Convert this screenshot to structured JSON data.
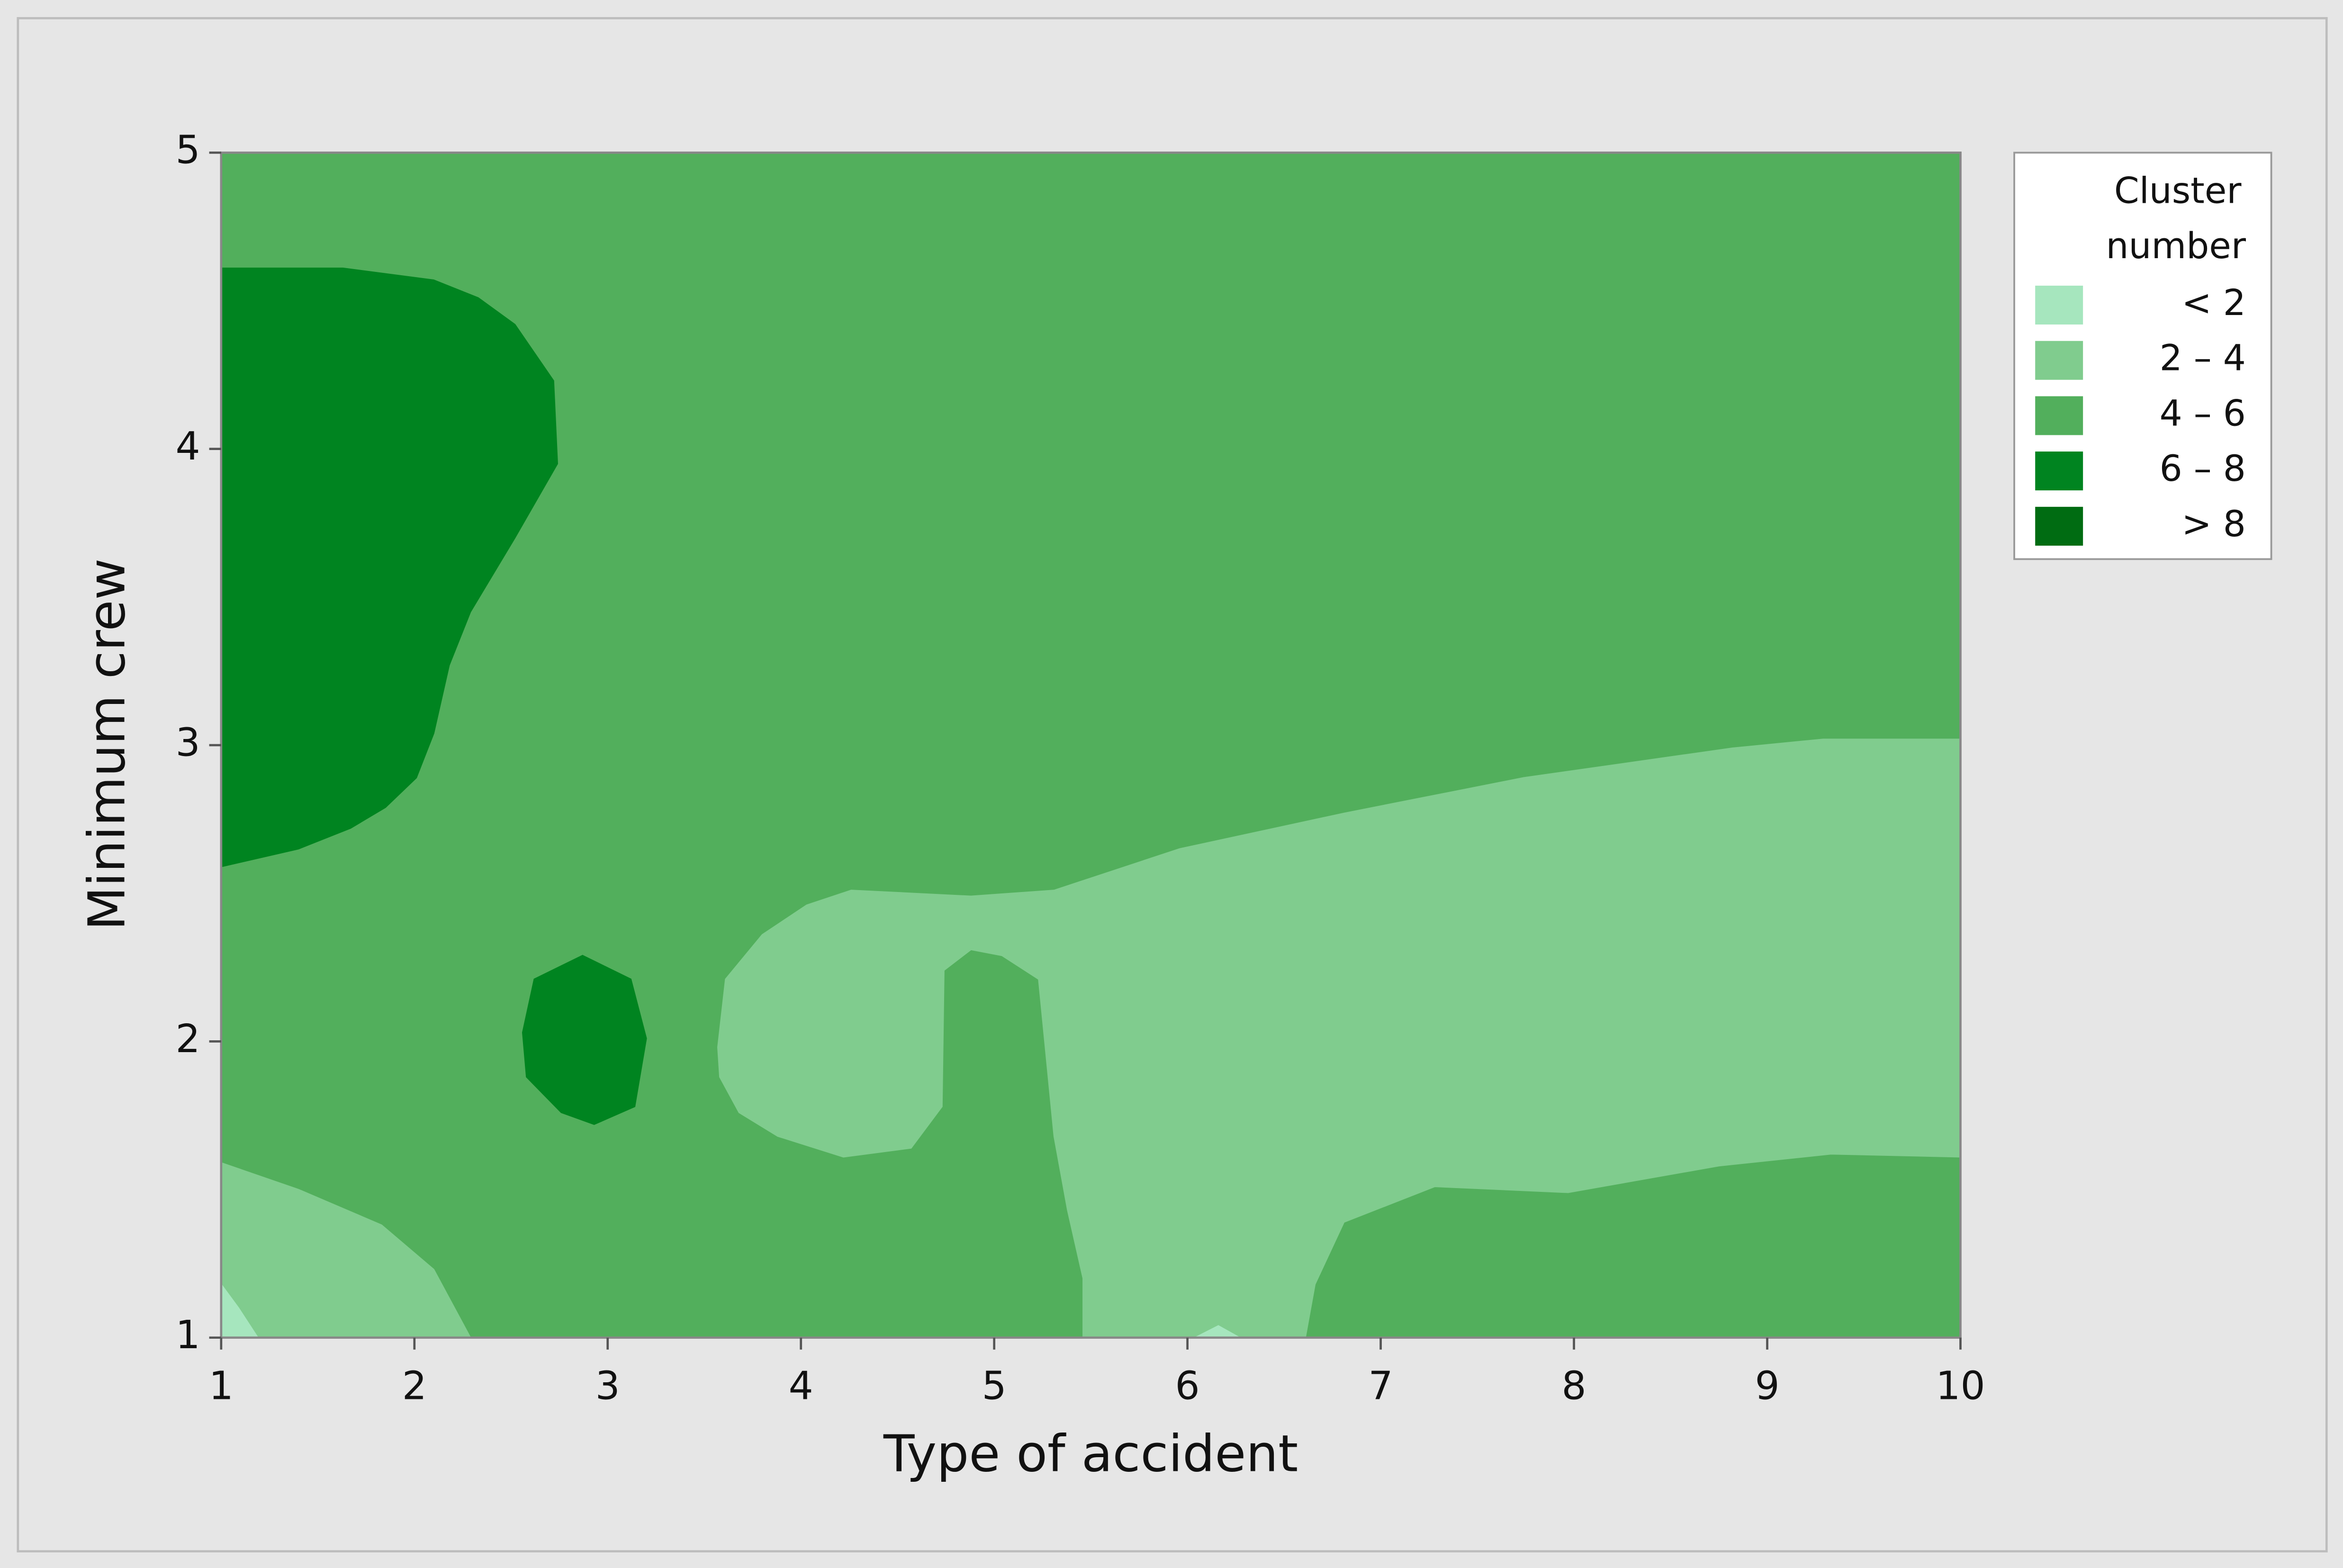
{
  "chart_data": {
    "type": "contour",
    "x_label": "Type of accident",
    "y_label": "Minimum crew",
    "xlim": [
      1,
      10
    ],
    "ylim": [
      1,
      5
    ],
    "xticks": [
      1,
      2,
      3,
      4,
      5,
      6,
      7,
      8,
      9,
      10
    ],
    "yticks": [
      1,
      2,
      3,
      4,
      5
    ],
    "legend_title": [
      "Cluster",
      "number"
    ],
    "levels": [
      {
        "label": "< 2",
        "color": "#a6e6be",
        "regions": [
          {
            "x": [
              1,
              1.09,
              1.19,
              1
            ],
            "y": [
              1.18,
              1.1,
              1,
              1
            ]
          },
          {
            "x": [
              6.04,
              6.16,
              6.27
            ],
            "y": [
              1,
              1.04,
              1
            ]
          }
        ]
      },
      {
        "label": "2 – 4",
        "color": "#80cc8e",
        "regions": [
          {
            "x": [
              3.61,
              3.8,
              4.03,
              4.26,
              4.88,
              5.31,
              5.96,
              6.81,
              7.74,
              8.82,
              9.29,
              10,
              10,
              9.33,
              8.75,
              7.97,
              7.28,
              6.81,
              6.66,
              6.61,
              6.27,
              6.16,
              6.04,
              5.46,
              5.46,
              5.38,
              5.31,
              5.23,
              5.04,
              4.88,
              4.74,
              4.73,
              4.57,
              4.22,
              3.88,
              3.68,
              3.58,
              3.57
            ],
            "y": [
              2.21,
              2.36,
              2.46,
              2.51,
              2.49,
              2.51,
              2.65,
              2.77,
              2.89,
              2.99,
              3.02,
              3.02,
              1.61,
              1.62,
              1.58,
              1.49,
              1.51,
              1.39,
              1.18,
              1,
              1,
              1.04,
              1,
              1,
              1.2,
              1.43,
              1.68,
              2.21,
              2.29,
              2.31,
              2.24,
              1.78,
              1.64,
              1.61,
              1.68,
              1.76,
              1.88,
              1.98
            ]
          },
          {
            "x": [
              1,
              1.4,
              1.83,
              2.1,
              2.29,
              1.19,
              1.09,
              1
            ],
            "y": [
              1.59,
              1.5,
              1.38,
              1.23,
              1,
              1,
              1.1,
              1.18
            ]
          }
        ]
      },
      {
        "label": "4 – 6",
        "color": "#52af5c",
        "regions": [
          {
            "x": [
              1,
              10,
              10,
              1
            ],
            "y": [
              1,
              1,
              5,
              5
            ]
          }
        ]
      },
      {
        "label": "6 – 8",
        "color": "#008420",
        "regions": [
          {
            "x": [
              1,
              1.63,
              2.1,
              2.33,
              2.52,
              2.72,
              2.74,
              2.52,
              2.29,
              2.18,
              2.1,
              2.01,
              1.85,
              1.67,
              1.4,
              1
            ],
            "y": [
              4.61,
              4.61,
              4.57,
              4.51,
              4.42,
              4.23,
              3.95,
              3.7,
              3.45,
              3.27,
              3.04,
              2.89,
              2.79,
              2.72,
              2.65,
              2.59
            ]
          },
          {
            "x": [
              2.62,
              2.87,
              3.12,
              3.2,
              3.14,
              2.93,
              2.76,
              2.58,
              2.56
            ],
            "y": [
              2.21,
              2.29,
              2.21,
              2.01,
              1.78,
              1.72,
              1.76,
              1.88,
              2.03
            ]
          }
        ]
      },
      {
        "label": "> 8",
        "color": "#006c12",
        "regions": []
      }
    ]
  }
}
